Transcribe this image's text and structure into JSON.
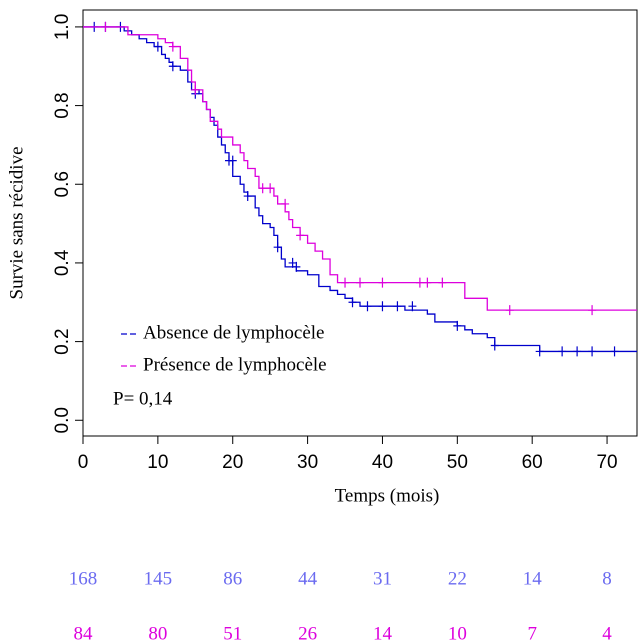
{
  "chart_data": {
    "type": "step",
    "x_label": "Temps (mois)",
    "y_label": "Survie sans récidive",
    "annotation": "P= 0,14",
    "xlim": [
      0,
      74
    ],
    "ylim": [
      -0.04,
      1.043
    ],
    "xticks": [
      0,
      10,
      20,
      30,
      40,
      50,
      60,
      70
    ],
    "yticks": [
      {
        "value": 0,
        "label": "0.0"
      },
      {
        "value": 0.2,
        "label": "0.2"
      },
      {
        "value": 0.4,
        "label": "0.4"
      },
      {
        "value": 0.6,
        "label": "0.6"
      },
      {
        "value": 0.8,
        "label": "0.8"
      },
      {
        "value": 1,
        "label": "1.0"
      }
    ],
    "series": [
      {
        "name": "Absence de lymphocèle",
        "color": "#0000cc",
        "risk_color": "#6b6bf0",
        "x": [
          0,
          5.5,
          6.5,
          7.5,
          8.5,
          9.5,
          10.5,
          11,
          11.5,
          12,
          13,
          14,
          14.5,
          15.5,
          16,
          16.5,
          17,
          17.5,
          18,
          18.5,
          19,
          19.5,
          20,
          21,
          21.5,
          22,
          23,
          23.5,
          24,
          25,
          25.5,
          26,
          26.5,
          27,
          28.5,
          30,
          31.5,
          33,
          34,
          35,
          36,
          37,
          43,
          46,
          47,
          50,
          51,
          52,
          54,
          55,
          61,
          74
        ],
        "values": [
          1,
          0.99,
          0.98,
          0.97,
          0.96,
          0.95,
          0.93,
          0.92,
          0.91,
          0.9,
          0.89,
          0.86,
          0.84,
          0.83,
          0.81,
          0.79,
          0.77,
          0.75,
          0.72,
          0.7,
          0.68,
          0.66,
          0.62,
          0.6,
          0.58,
          0.57,
          0.54,
          0.52,
          0.5,
          0.49,
          0.47,
          0.44,
          0.41,
          0.39,
          0.38,
          0.37,
          0.34,
          0.33,
          0.32,
          0.31,
          0.3,
          0.29,
          0.28,
          0.27,
          0.25,
          0.24,
          0.23,
          0.22,
          0.21,
          0.19,
          0.175,
          0.175
        ],
        "censored_x": [
          1.5,
          3,
          5,
          10,
          12,
          15,
          19.5,
          20,
          22,
          26,
          28,
          28.5,
          36,
          38,
          40,
          42,
          44,
          50,
          55,
          61,
          64,
          66,
          68,
          71
        ],
        "censored_y": [
          1,
          1,
          1,
          0.95,
          0.9,
          0.83,
          0.66,
          0.66,
          0.57,
          0.44,
          0.4,
          0.39,
          0.3,
          0.29,
          0.29,
          0.29,
          0.29,
          0.24,
          0.19,
          0.175,
          0.175,
          0.175,
          0.175,
          0.175
        ],
        "at_risk": [
          168,
          145,
          86,
          44,
          31,
          22,
          14,
          8
        ]
      },
      {
        "name": "Présence de lymphocèle",
        "color": "#dd00dd",
        "risk_color": "#dd00dd",
        "x": [
          0,
          6,
          10,
          11,
          12,
          13,
          14,
          14.5,
          15,
          16,
          16.5,
          17,
          18,
          18.5,
          20,
          21,
          21.5,
          22,
          23,
          23.5,
          25.5,
          26,
          27,
          27.5,
          28,
          29,
          30,
          31,
          32,
          33,
          34,
          51,
          54,
          74
        ],
        "values": [
          1,
          0.98,
          0.97,
          0.96,
          0.95,
          0.92,
          0.89,
          0.86,
          0.84,
          0.81,
          0.79,
          0.76,
          0.74,
          0.72,
          0.7,
          0.68,
          0.66,
          0.64,
          0.62,
          0.59,
          0.57,
          0.55,
          0.53,
          0.51,
          0.49,
          0.47,
          0.45,
          0.43,
          0.41,
          0.37,
          0.35,
          0.31,
          0.28,
          0.28
        ],
        "censored_x": [
          3,
          12,
          15,
          24,
          25,
          27,
          29,
          35,
          37,
          40,
          45,
          46,
          48,
          57,
          68
        ],
        "censored_y": [
          1,
          0.95,
          0.84,
          0.59,
          0.59,
          0.55,
          0.47,
          0.35,
          0.35,
          0.35,
          0.35,
          0.35,
          0.35,
          0.28,
          0.28
        ],
        "at_risk": [
          84,
          80,
          51,
          26,
          14,
          10,
          7,
          4
        ]
      }
    ]
  }
}
